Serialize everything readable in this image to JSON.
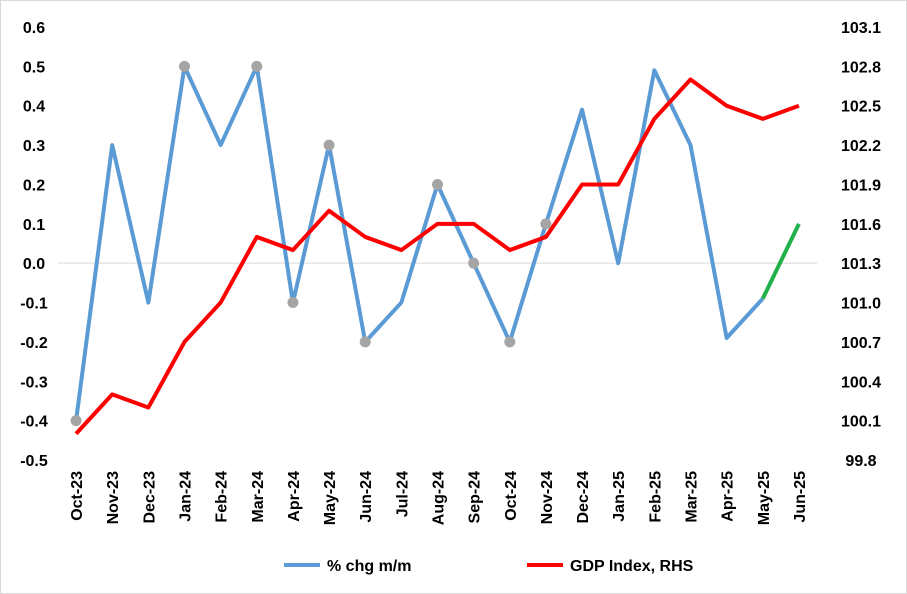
{
  "chart_data": {
    "type": "line",
    "categories": [
      "Oct-23",
      "Nov-23",
      "Dec-23",
      "Jan-24",
      "Feb-24",
      "Mar-24",
      "Apr-24",
      "May-24",
      "Jun-24",
      "Jul-24",
      "Aug-24",
      "Sep-24",
      "Oct-24",
      "Nov-24",
      "Dec-24",
      "Jan-25",
      "Feb-25",
      "Mar-25",
      "Apr-25",
      "May-25",
      "Jun-25"
    ],
    "left_axis": {
      "ylim": [
        -0.5,
        0.6
      ],
      "ticks": [
        "0.6",
        "0.5",
        "0.4",
        "0.3",
        "0.2",
        "0.1",
        "0.0",
        "-0.1",
        "-0.2",
        "-0.3",
        "-0.4",
        "-0.5"
      ]
    },
    "right_axis": {
      "ylim": [
        99.8,
        103.1
      ],
      "ticks": [
        "103.1",
        "102.8",
        "102.5",
        "102.2",
        "101.9",
        "101.6",
        "101.3",
        "101.0",
        "100.7",
        "100.4",
        "100.1",
        "99.8"
      ]
    },
    "series": [
      {
        "name": "% chg m/m",
        "axis": "left",
        "color": "#5b9bd5",
        "values": [
          -0.4,
          0.3,
          -0.1,
          0.5,
          0.3,
          0.5,
          -0.1,
          0.3,
          -0.2,
          -0.1,
          0.2,
          0.0,
          -0.2,
          0.1,
          0.39,
          0.0,
          0.49,
          0.3,
          -0.19,
          -0.09,
          0.1
        ],
        "highlighted_points": [
          0,
          3,
          5,
          6,
          7,
          8,
          10,
          11,
          12,
          13
        ],
        "highlight_color": "#a5a5a5",
        "projection_from_index": 19,
        "projection_color": "#21b14b"
      },
      {
        "name": "GDP Index, RHS",
        "axis": "right",
        "color": "#ff0000",
        "values": [
          100.0,
          100.3,
          100.2,
          100.7,
          101.0,
          101.5,
          101.4,
          101.7,
          101.5,
          101.4,
          101.6,
          101.6,
          101.4,
          101.5,
          101.9,
          101.9,
          102.4,
          102.7,
          102.5,
          102.4,
          102.5
        ]
      }
    ],
    "legend": "bottom",
    "grid": false
  }
}
